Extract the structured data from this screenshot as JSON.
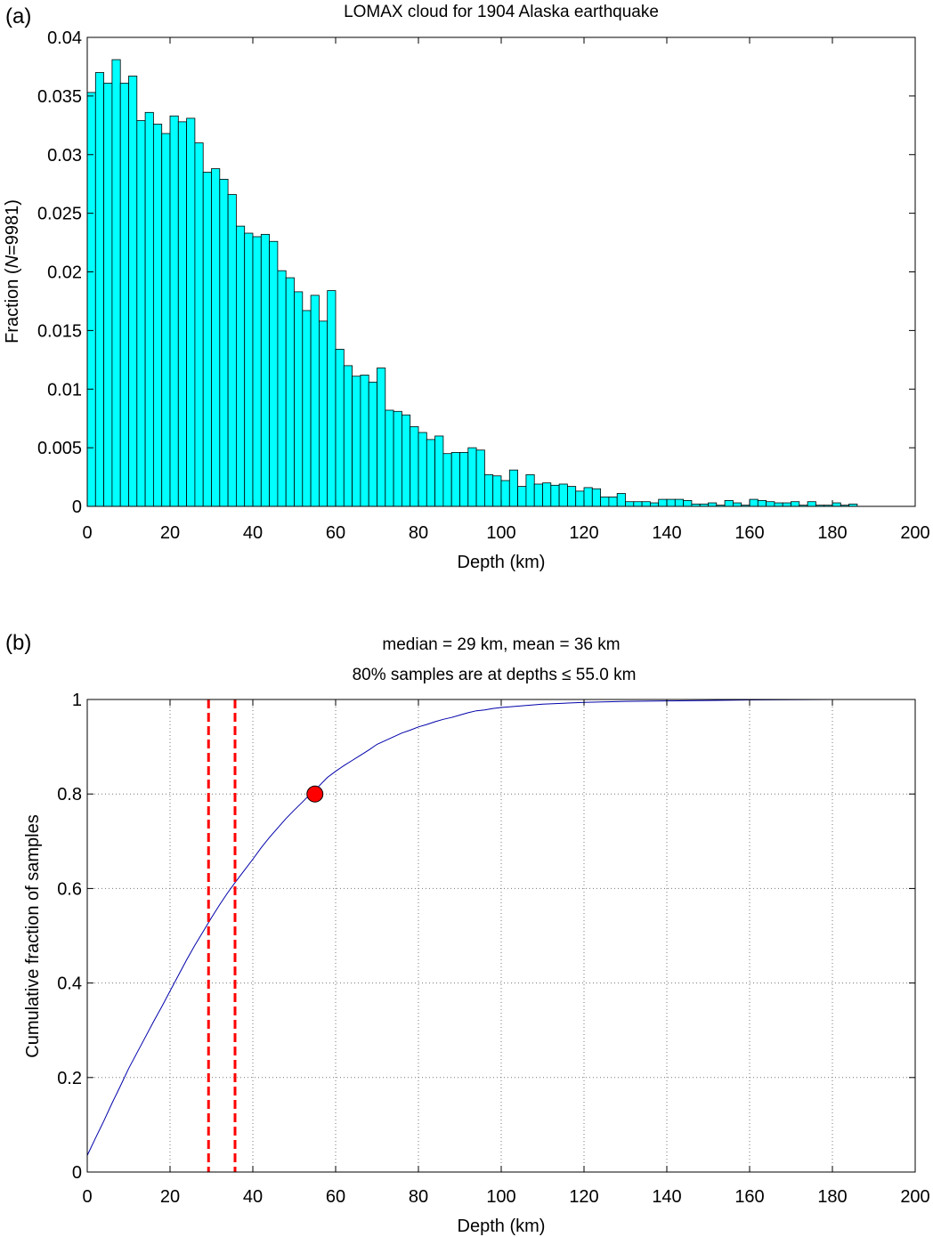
{
  "chart_data": [
    {
      "type": "bar",
      "panel_label": "(a)",
      "title": "LOMAX cloud for 1904 Alaska earthquake",
      "xlabel": "Depth (km)",
      "ylabel_prefix": "Fraction (",
      "ylabel_italic": "N",
      "ylabel_suffix": "=9981)",
      "xlim": [
        0,
        200
      ],
      "ylim": [
        0,
        0.04
      ],
      "xticks": [
        0,
        20,
        40,
        60,
        80,
        100,
        120,
        140,
        160,
        180,
        200
      ],
      "yticks": [
        0,
        0.005,
        0.01,
        0.015,
        0.02,
        0.025,
        0.03,
        0.035,
        0.04
      ],
      "ytick_labels": [
        "0",
        "0.005",
        "0.01",
        "0.015",
        "0.02",
        "0.025",
        "0.03",
        "0.035",
        "0.04"
      ],
      "grid": false,
      "bin_width_km": 2,
      "bar_color": "#00ffff",
      "bin_start_km": [
        0,
        2,
        4,
        6,
        8,
        10,
        12,
        14,
        16,
        18,
        20,
        22,
        24,
        26,
        28,
        30,
        32,
        34,
        36,
        38,
        40,
        42,
        44,
        46,
        48,
        50,
        52,
        54,
        56,
        58,
        60,
        62,
        64,
        66,
        68,
        70,
        72,
        74,
        76,
        78,
        80,
        82,
        84,
        86,
        88,
        90,
        92,
        94,
        96,
        98,
        100,
        102,
        104,
        106,
        108,
        110,
        112,
        114,
        116,
        118,
        120,
        122,
        124,
        126,
        128,
        130,
        132,
        134,
        136,
        138,
        140,
        142,
        144,
        146,
        148,
        150,
        152,
        154,
        156,
        158,
        160,
        162,
        164,
        166,
        168,
        170,
        172,
        174,
        176,
        178,
        180,
        182,
        184,
        186,
        188,
        190,
        192,
        194,
        196,
        198
      ],
      "values": [
        0.0353,
        0.037,
        0.0361,
        0.0381,
        0.0361,
        0.0367,
        0.0329,
        0.0336,
        0.0326,
        0.0318,
        0.0333,
        0.0328,
        0.0331,
        0.031,
        0.0285,
        0.0288,
        0.0279,
        0.0266,
        0.0239,
        0.0233,
        0.023,
        0.0232,
        0.0226,
        0.0201,
        0.0195,
        0.0183,
        0.0167,
        0.018,
        0.0158,
        0.0184,
        0.0134,
        0.012,
        0.0111,
        0.0112,
        0.0106,
        0.0118,
        0.0082,
        0.0081,
        0.0078,
        0.0068,
        0.0063,
        0.0057,
        0.006,
        0.0045,
        0.0046,
        0.0046,
        0.005,
        0.0048,
        0.0027,
        0.0026,
        0.0022,
        0.0031,
        0.0017,
        0.0027,
        0.0019,
        0.002,
        0.0018,
        0.0019,
        0.0017,
        0.0013,
        0.0016,
        0.0015,
        0.0008,
        0.0008,
        0.0011,
        0.0004,
        0.0004,
        0.0004,
        0.0003,
        0.0006,
        0.0006,
        0.0006,
        0.0005,
        0.0002,
        0.0002,
        0.0003,
        0.0001,
        0.0005,
        0.0003,
        0.0001,
        0.0006,
        0.0005,
        0.0004,
        0.0003,
        0.0003,
        0.0004,
        0.0001,
        0.0004,
        0.0001,
        0.0001,
        0.0003,
        0.0001,
        0.0002,
        0.0,
        0.0,
        0.0,
        0.0,
        0.0,
        0.0,
        0.0
      ]
    },
    {
      "type": "line",
      "panel_label": "(b)",
      "title_line1": "median = 29 km, mean = 36 km",
      "title_line2": "80% samples are at depths ≤ 55.0 km",
      "xlabel": "Depth (km)",
      "ylabel": "Cumulative fraction of samples",
      "xlim": [
        0,
        200
      ],
      "ylim": [
        0,
        1
      ],
      "xticks": [
        0,
        20,
        40,
        60,
        80,
        100,
        120,
        140,
        160,
        180,
        200
      ],
      "yticks": [
        0,
        0.2,
        0.4,
        0.6,
        0.8,
        1
      ],
      "ytick_labels": [
        "0",
        "0.2",
        "0.4",
        "0.6",
        "0.8",
        "1"
      ],
      "grid": true,
      "series": [
        {
          "line_color": "#0000aa",
          "x": [
            0,
            2,
            4,
            6,
            8,
            10,
            12,
            14,
            16,
            18,
            20,
            22,
            24,
            26,
            28,
            30,
            32,
            34,
            36,
            38,
            40,
            42,
            44,
            46,
            48,
            50,
            52,
            54,
            56,
            58,
            60,
            62,
            64,
            66,
            68,
            70,
            72,
            74,
            76,
            78,
            80,
            82,
            84,
            86,
            88,
            90,
            92,
            94,
            96,
            98,
            100,
            110,
            120,
            130,
            140,
            150,
            160,
            170,
            180,
            190,
            200
          ],
          "y": [
            0.035,
            0.072,
            0.108,
            0.146,
            0.182,
            0.219,
            0.252,
            0.285,
            0.318,
            0.35,
            0.383,
            0.416,
            0.449,
            0.48,
            0.509,
            0.538,
            0.566,
            0.592,
            0.616,
            0.639,
            0.662,
            0.686,
            0.708,
            0.728,
            0.748,
            0.766,
            0.783,
            0.801,
            0.817,
            0.835,
            0.848,
            0.86,
            0.871,
            0.882,
            0.893,
            0.905,
            0.913,
            0.921,
            0.929,
            0.935,
            0.942,
            0.947,
            0.953,
            0.958,
            0.962,
            0.967,
            0.972,
            0.976,
            0.978,
            0.981,
            0.983,
            0.99,
            0.994,
            0.996,
            0.997,
            0.998,
            0.999,
            0.9995,
            1.0,
            1.0,
            1.0
          ]
        }
      ],
      "markers": {
        "median_km": 29,
        "mean_km": 36,
        "vline_x": [
          29.3,
          35.7
        ],
        "vline_color": "#ff0000",
        "point": {
          "x": 55.0,
          "y": 0.8,
          "color": "#ff0000"
        }
      }
    }
  ]
}
